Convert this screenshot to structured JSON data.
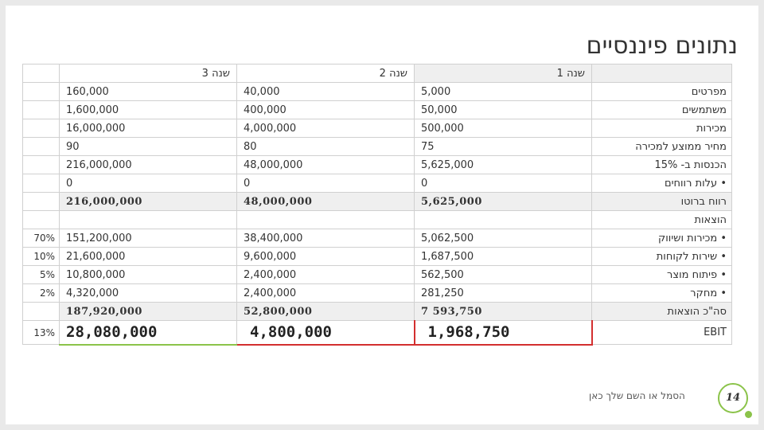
{
  "title": "נתונים פיננסיים",
  "header": {
    "col3": "שנה 3",
    "col2": "שנה 2",
    "col1": "שנה 1"
  },
  "rows": [
    {
      "label": "מפרטים",
      "y3": "160,000",
      "y2": "40,000",
      "y1": "5,000"
    },
    {
      "label": "משתמשים",
      "y3": "1,600,000",
      "y2": "400,000",
      "y1": "50,000"
    },
    {
      "label": "מכירות",
      "y3": "16,000,000",
      "y2": "4,000,000",
      "y1": "500,000"
    },
    {
      "label": "מחיר ממוצע למכירה",
      "y3": "90",
      "y2": "80",
      "y1": "75"
    },
    {
      "label": "הכנסות ב- 15%",
      "y3": "216,000,000",
      "y2": "48,000,000",
      "y1": "5,625,000"
    },
    {
      "label": "עלות רווחים",
      "bullet": "•",
      "y3": "0",
      "y2": "0",
      "y1": "0"
    },
    {
      "label": "רווח ברוטו",
      "y3": "216,000,000",
      "y2": "48,000,000",
      "y1": "5,625,000"
    },
    {
      "label": "הוצאות"
    },
    {
      "pct": "70%",
      "label": "מכירות ושיווק",
      "bullet": "•",
      "y3": "151,200,000",
      "y2": "38,400,000",
      "y1": "5,062,500"
    },
    {
      "pct": "10%",
      "label": "שירות לקוחות",
      "bullet": "•",
      "y3": "21,600,000",
      "y2": "9,600,000",
      "y1": "1,687,500"
    },
    {
      "pct": "5%",
      "label": "פיתוח מוצר",
      "bullet": "•",
      "y3": "10,800,000",
      "y2": "2,400,000",
      "y1": "562,500"
    },
    {
      "pct": "2%",
      "label": "מחקר",
      "bullet": "•",
      "y3": "4,320,000",
      "y2": "2,400,000",
      "y1": "281,250"
    },
    {
      "label": "סה\"כ הוצאות",
      "y3": "187,920,000",
      "y2": "52,800,000",
      "y1": "7 593,750"
    }
  ],
  "ebit": {
    "pct": "13%",
    "label": "EBIT",
    "y3": "28,080,000",
    "y2": "4,800,000",
    "y1": "1,968,750"
  },
  "footer": {
    "text": "הסמל או השם שלך כאן",
    "page": "14"
  }
}
